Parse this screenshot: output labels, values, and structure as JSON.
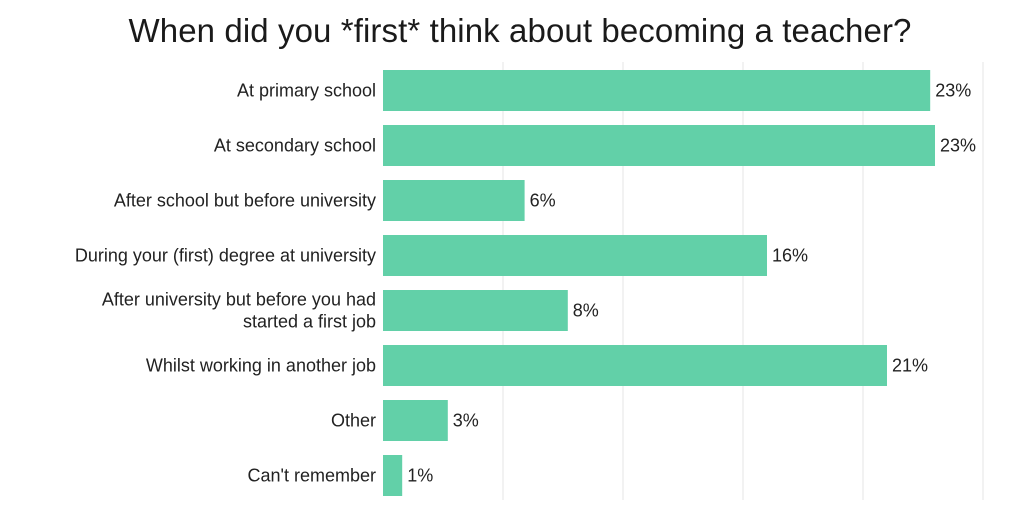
{
  "chart_data": {
    "type": "bar",
    "orientation": "horizontal",
    "title": "When did you *first* think about becoming a teacher?",
    "categories": [
      [
        "At primary school"
      ],
      [
        "At secondary school"
      ],
      [
        "After school but before university"
      ],
      [
        "During your (first) degree at university"
      ],
      [
        "After university but before you had",
        "started a first job"
      ],
      [
        "Whilst working in another job"
      ],
      [
        "Other"
      ],
      [
        "Can't remember"
      ]
    ],
    "values": [
      22.8,
      23.0,
      5.9,
      16.0,
      7.7,
      21.0,
      2.7,
      0.8
    ],
    "value_labels": [
      "23%",
      "23%",
      "6%",
      "16%",
      "8%",
      "21%",
      "3%",
      "1%"
    ],
    "xlim": [
      0,
      25
    ],
    "grid": true,
    "bar_color": "#62d0a8",
    "grid_color": "#e6e6e6"
  }
}
